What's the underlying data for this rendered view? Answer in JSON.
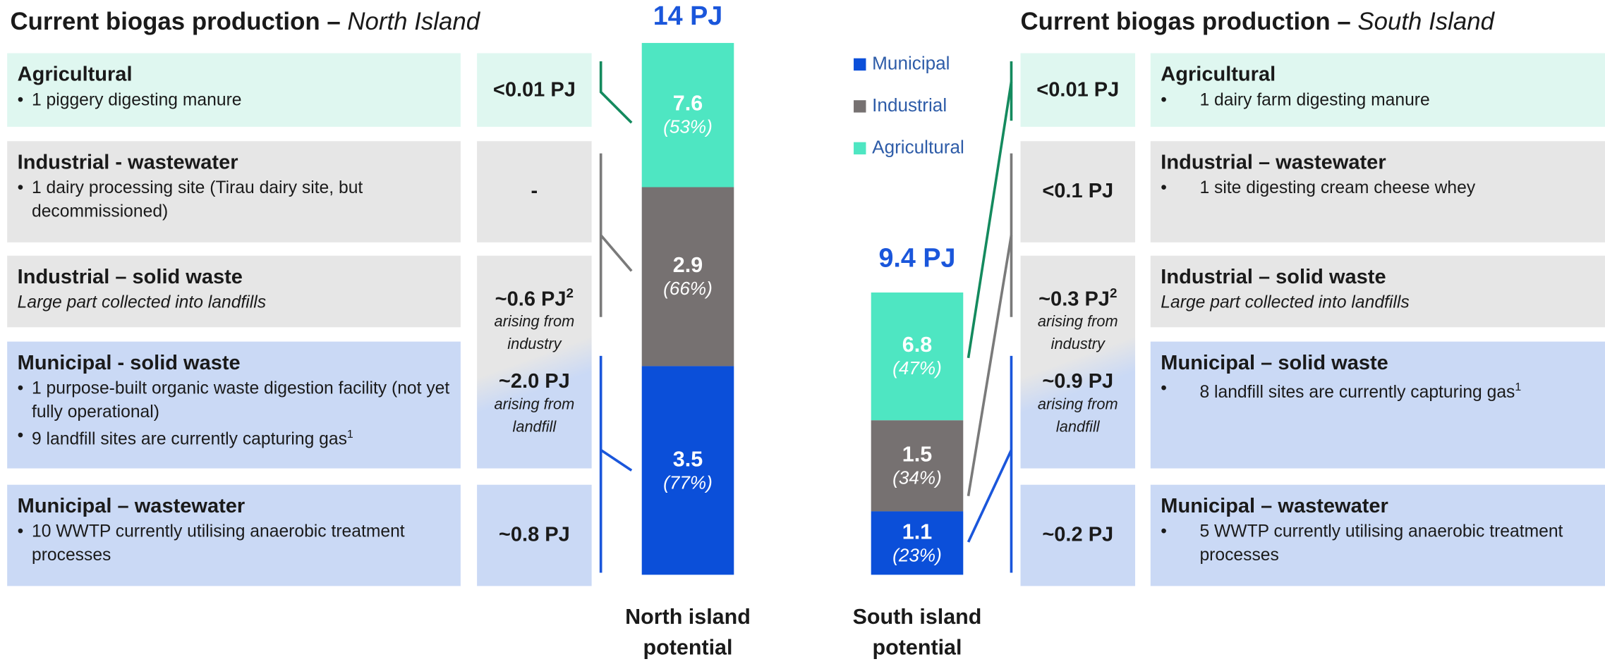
{
  "north": {
    "title": "Current biogas production",
    "subtitle": "North Island",
    "rows": [
      {
        "heading": "Agricultural",
        "bullets": [
          "1 piggery digesting manure"
        ]
      },
      {
        "heading": "Industrial - wastewater",
        "bullets": [
          "1 dairy processing site (Tirau dairy site, but decommissioned)"
        ]
      },
      {
        "heading": "Industrial – solid waste",
        "note": "Large part collected into landfills"
      },
      {
        "heading": "Municipal - solid waste",
        "bullets": [
          "1 purpose-built organic waste digestion facility (not yet fully operational)",
          "9 landfill sites are currently capturing gas"
        ],
        "bullet_sup": "1"
      },
      {
        "heading": "Municipal – wastewater",
        "bullets": [
          "10 WWTP currently utilising anaerobic treatment processes"
        ]
      }
    ],
    "cells": [
      {
        "items": [
          {
            "value": "<0.01 PJ"
          }
        ]
      },
      {
        "items": [
          {
            "value": "-"
          }
        ]
      },
      {
        "items": [
          {
            "value": "~0.6 PJ",
            "sup": "2",
            "note": "arising from industry"
          },
          {
            "value": "~2.0 PJ",
            "note": "arising from landfill"
          }
        ]
      },
      {
        "items": [
          {
            "value": "~0.8 PJ"
          }
        ]
      }
    ],
    "bar": {
      "total": "14 PJ",
      "label": "North island potential",
      "segments": [
        {
          "value": "7.6",
          "share": "(53%)"
        },
        {
          "value": "2.9",
          "share": "(66%)"
        },
        {
          "value": "3.5",
          "share": "(77%)"
        }
      ]
    }
  },
  "south": {
    "title": "Current biogas production",
    "subtitle": "South Island",
    "rows": [
      {
        "heading": "Agricultural",
        "bullets": [
          "1 dairy farm digesting manure"
        ]
      },
      {
        "heading": "Industrial – wastewater",
        "bullets": [
          "1 site digesting cream cheese whey"
        ]
      },
      {
        "heading": "Industrial – solid waste",
        "note": "Large part collected into landfills"
      },
      {
        "heading": "Municipal – solid waste",
        "bullets": [
          "8 landfill sites are currently capturing gas"
        ],
        "bullet_sup": "1"
      },
      {
        "heading": "Municipal – wastewater",
        "bullets": [
          "5 WWTP currently utilising anaerobic treatment processes"
        ]
      }
    ],
    "cells": [
      {
        "items": [
          {
            "value": "<0.01 PJ"
          }
        ]
      },
      {
        "items": [
          {
            "value": "<0.1 PJ"
          }
        ]
      },
      {
        "items": [
          {
            "value": "~0.3 PJ",
            "sup": "2",
            "note": "arising from industry"
          },
          {
            "value": "~0.9 PJ",
            "note": "arising from landfill"
          }
        ]
      },
      {
        "items": [
          {
            "value": "~0.2 PJ"
          }
        ]
      }
    ],
    "bar": {
      "total": "9.4 PJ",
      "label": "South island potential",
      "segments": [
        {
          "value": "6.8",
          "share": "(47%)"
        },
        {
          "value": "1.5",
          "share": "(34%)"
        },
        {
          "value": "1.1",
          "share": "(23%)"
        }
      ]
    }
  },
  "legend": [
    "Municipal",
    "Industrial",
    "Agricultural"
  ]
}
